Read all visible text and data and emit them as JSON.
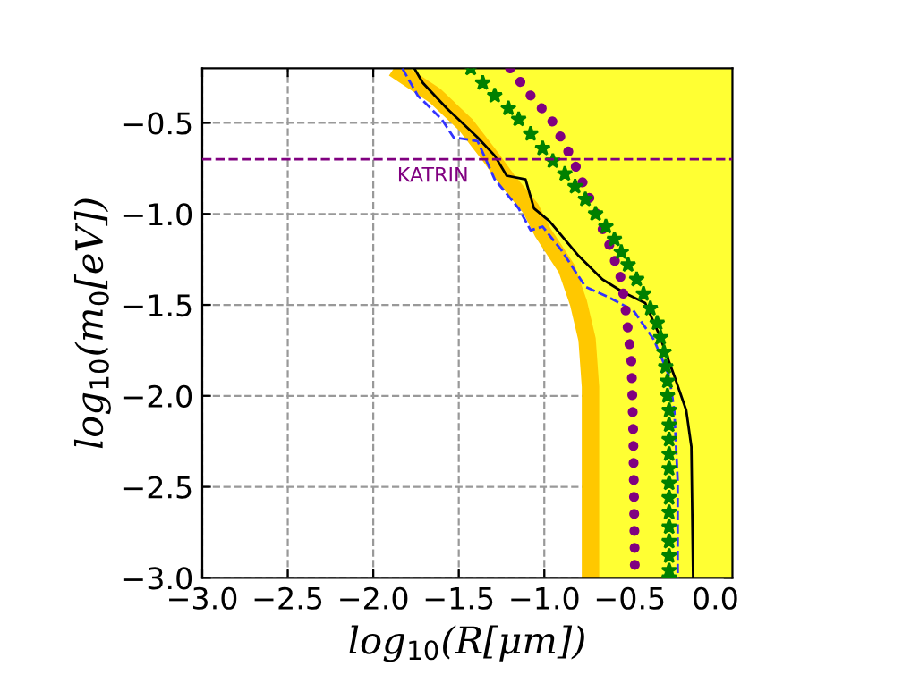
{
  "chart_data": {
    "type": "line",
    "xlabel": "log$_{10}$(R[μm])",
    "ylabel": "log$_{10}$(m$_{0}$[eV])",
    "xlim": [
      -3.0,
      0.1
    ],
    "ylim": [
      -3.0,
      -0.2
    ],
    "xticks": [
      {
        "value": -3.0,
        "label": "−3.0"
      },
      {
        "value": -2.5,
        "label": "−2.5"
      },
      {
        "value": -2.0,
        "label": "−2.0"
      },
      {
        "value": -1.5,
        "label": "−1.5"
      },
      {
        "value": -1.0,
        "label": "−1.0"
      },
      {
        "value": -0.5,
        "label": "−0.5"
      },
      {
        "value": 0.0,
        "label": "0.0"
      }
    ],
    "yticks": [
      {
        "value": -3.0,
        "label": "−3.0"
      },
      {
        "value": -2.5,
        "label": "−2.5"
      },
      {
        "value": -2.0,
        "label": "−2.0"
      },
      {
        "value": -1.5,
        "label": "−1.5"
      },
      {
        "value": -1.0,
        "label": "−1.0"
      },
      {
        "value": -0.5,
        "label": "−0.5"
      }
    ],
    "grid": true,
    "ref_lines": [
      {
        "axis": "y",
        "value": -0.7,
        "label": "KATRIN",
        "color": "#800080",
        "line_style": "dashed"
      }
    ],
    "series": [
      {
        "type": "area",
        "color": "#ffff33",
        "x": [
          -1.84,
          -1.6,
          -1.42,
          -1.28,
          -1.18,
          -1.04,
          -0.97,
          -0.83,
          -0.76,
          -0.71,
          -0.69,
          -0.69,
          0.1
        ],
        "values": [
          -0.2,
          -0.35,
          -0.51,
          -0.68,
          -0.81,
          -0.97,
          -1.1,
          -1.3,
          -1.49,
          -1.69,
          -1.95,
          -3.0,
          -3.0
        ]
      },
      {
        "color": "#ffc800",
        "line_style": "solid",
        "x": [
          -1.88,
          -1.64,
          -1.46,
          -1.32,
          -1.22,
          -1.08,
          -1.01,
          -0.87,
          -0.8,
          -0.75,
          -0.73,
          -0.73
        ],
        "values": [
          -0.2,
          -0.35,
          -0.51,
          -0.68,
          -0.81,
          -0.97,
          -1.1,
          -1.3,
          -1.49,
          -1.69,
          -1.95,
          -3.0
        ]
      },
      {
        "color": "#3333ff",
        "line_style": "dashed",
        "x": [
          -1.83,
          -1.74,
          -1.6,
          -1.53,
          -1.39,
          -1.29,
          -1.15,
          -1.08,
          -1.01,
          -0.9,
          -0.76,
          -0.62,
          -0.48,
          -0.36,
          -0.27,
          -0.24,
          -0.22,
          -0.22
        ],
        "values": [
          -0.2,
          -0.35,
          -0.48,
          -0.58,
          -0.6,
          -0.81,
          -0.97,
          -1.09,
          -1.07,
          -1.2,
          -1.4,
          -1.46,
          -1.53,
          -1.69,
          -1.89,
          -2.08,
          -2.47,
          -3.0
        ]
      },
      {
        "color": "#000000",
        "line_style": "solid",
        "x": [
          -1.76,
          -1.71,
          -1.57,
          -1.39,
          -1.29,
          -1.22,
          -1.11,
          -1.06,
          -0.97,
          -0.8,
          -0.66,
          -0.54,
          -0.41,
          -0.33,
          -0.24,
          -0.17,
          -0.14,
          -0.13
        ],
        "values": [
          -0.2,
          -0.28,
          -0.42,
          -0.58,
          -0.68,
          -0.79,
          -0.81,
          -0.97,
          -1.04,
          -1.23,
          -1.36,
          -1.43,
          -1.49,
          -1.66,
          -1.89,
          -2.08,
          -2.28,
          -3.0
        ]
      },
      {
        "color": "#800080",
        "line_style": "dotted",
        "x": [
          -1.2,
          -1.08,
          -0.96,
          -0.83,
          -0.71,
          -0.62,
          -0.55,
          -0.52,
          -0.49,
          -0.48,
          -0.47
        ],
        "values": [
          -0.2,
          -0.35,
          -0.48,
          -0.71,
          -0.97,
          -1.17,
          -1.36,
          -1.56,
          -1.82,
          -2.21,
          -3.0
        ]
      },
      {
        "type": "scatter",
        "color": "#008000",
        "marker": "star",
        "x": [
          -1.43,
          -1.36,
          -1.29,
          -1.21,
          -1.15,
          -1.08,
          -1.01,
          -0.95,
          -0.88,
          -0.82,
          -0.76,
          -0.7,
          -0.64,
          -0.59,
          -0.55,
          -0.51,
          -0.46,
          -0.42,
          -0.38,
          -0.34,
          -0.32,
          -0.3,
          -0.29,
          -0.28,
          -0.28,
          -0.27,
          -0.27,
          -0.27,
          -0.27,
          -0.27,
          -0.27,
          -0.27,
          -0.27,
          -0.27,
          -0.27,
          -0.27,
          -0.27,
          -0.27
        ],
        "values": [
          -0.2,
          -0.28,
          -0.35,
          -0.42,
          -0.48,
          -0.56,
          -0.64,
          -0.71,
          -0.78,
          -0.85,
          -0.92,
          -1.0,
          -1.07,
          -1.14,
          -1.21,
          -1.28,
          -1.36,
          -1.44,
          -1.52,
          -1.6,
          -1.68,
          -1.76,
          -1.84,
          -1.92,
          -2.0,
          -2.08,
          -2.16,
          -2.24,
          -2.32,
          -2.4,
          -2.48,
          -2.56,
          -2.64,
          -2.72,
          -2.8,
          -2.88,
          -2.96,
          -3.0
        ]
      }
    ]
  }
}
